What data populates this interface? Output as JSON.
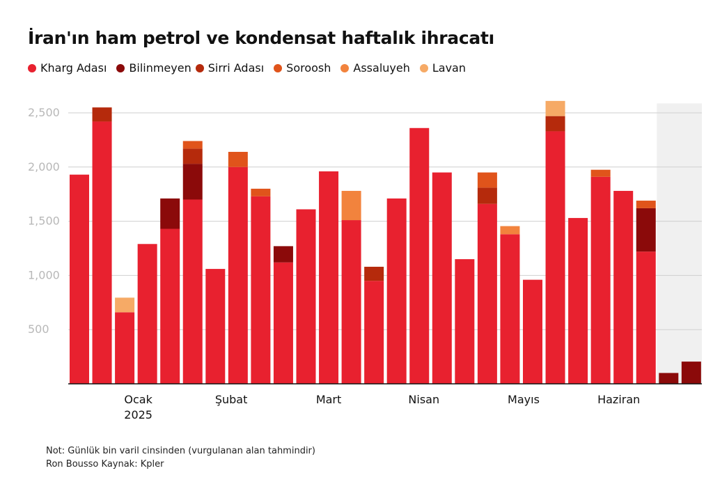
{
  "title": "İran'ın ham petrol ve kondensat haftalık ihracatı",
  "legend": [
    {
      "label": "Kharg Adası",
      "color": "#e8212f"
    },
    {
      "label": "Bilinmeyen",
      "color": "#8b0a0a"
    },
    {
      "label": "Sirri Adası",
      "color": "#b52a0c"
    },
    {
      "label": "Soroosh",
      "color": "#e0541b"
    },
    {
      "label": "Assaluyeh",
      "color": "#f2833d"
    },
    {
      "label": "Lavan",
      "color": "#f6aa66"
    }
  ],
  "notes": {
    "line1": "Not: Günlük bin varil cinsinden (vurgulanan alan tahmindir)",
    "line2": "Ron Bousso Kaynak: Kpler"
  },
  "chart_data": {
    "type": "bar",
    "stacked": true,
    "ylim": [
      0,
      2600
    ],
    "yticks": [
      500,
      1000,
      1500,
      2000,
      2500
    ],
    "ytick_labels": [
      "500",
      "1,000",
      "1,500",
      "2,000",
      "2,500"
    ],
    "grid": true,
    "legend_position": "top-left",
    "estimated_region_start_index": 26,
    "month_labels": [
      {
        "label": "Ocak",
        "sublabel": "2025",
        "at_index": 2.6
      },
      {
        "label": "Şubat",
        "sublabel": "",
        "at_index": 6.7
      },
      {
        "label": "Mart",
        "sublabel": "",
        "at_index": 11.0
      },
      {
        "label": "Nisan",
        "sublabel": "",
        "at_index": 15.2
      },
      {
        "label": "Mayıs",
        "sublabel": "",
        "at_index": 19.6
      },
      {
        "label": "Haziran",
        "sublabel": "",
        "at_index": 23.8
      }
    ],
    "series": [
      {
        "name": "Kharg Adası",
        "color": "#e8212f",
        "values": [
          1930,
          2420,
          660,
          1290,
          1430,
          1700,
          1060,
          2000,
          1730,
          1120,
          1610,
          1960,
          1510,
          950,
          1710,
          2360,
          1950,
          1150,
          1660,
          1380,
          960,
          2330,
          1530,
          1910,
          1780,
          1220,
          0,
          0
        ]
      },
      {
        "name": "Bilinmeyen",
        "color": "#8b0a0a",
        "values": [
          0,
          0,
          0,
          0,
          280,
          330,
          0,
          0,
          0,
          150,
          0,
          0,
          0,
          0,
          0,
          0,
          0,
          0,
          0,
          0,
          0,
          0,
          0,
          0,
          0,
          400,
          100,
          205
        ]
      },
      {
        "name": "Sirri Adası",
        "color": "#b52a0c",
        "values": [
          0,
          130,
          0,
          0,
          0,
          140,
          0,
          0,
          0,
          0,
          0,
          0,
          0,
          130,
          0,
          0,
          0,
          0,
          150,
          0,
          0,
          140,
          0,
          0,
          0,
          0,
          0,
          0
        ]
      },
      {
        "name": "Soroosh",
        "color": "#e0541b",
        "values": [
          0,
          0,
          0,
          0,
          0,
          70,
          0,
          140,
          70,
          0,
          0,
          0,
          0,
          0,
          0,
          0,
          0,
          0,
          140,
          0,
          0,
          0,
          0,
          65,
          0,
          70,
          0,
          0
        ]
      },
      {
        "name": "Assaluyeh",
        "color": "#f2833d",
        "values": [
          0,
          0,
          0,
          0,
          0,
          0,
          0,
          0,
          0,
          0,
          0,
          0,
          270,
          0,
          0,
          0,
          0,
          0,
          0,
          75,
          0,
          0,
          0,
          0,
          0,
          0,
          0,
          0
        ]
      },
      {
        "name": "Lavan",
        "color": "#f6aa66",
        "values": [
          0,
          0,
          135,
          0,
          0,
          0,
          0,
          0,
          0,
          0,
          0,
          0,
          0,
          0,
          0,
          0,
          0,
          0,
          0,
          0,
          0,
          140,
          0,
          0,
          0,
          0,
          0,
          0
        ]
      }
    ]
  }
}
